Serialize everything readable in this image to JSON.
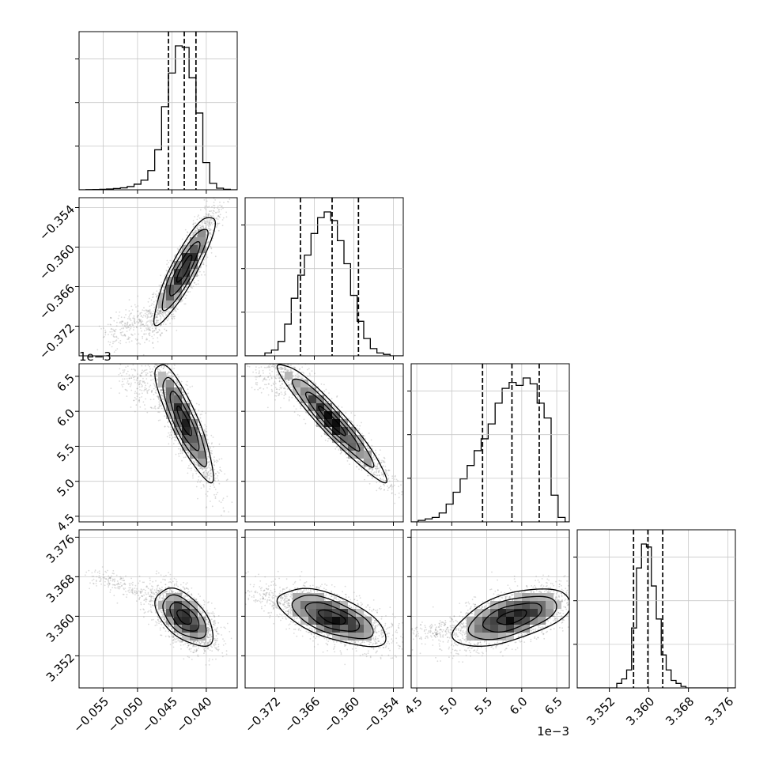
{
  "chart_data": {
    "type": "corner",
    "n_params": 4,
    "colors": {
      "hist": "#000000",
      "grid": "#c8c8c8",
      "points": "#7f7f7f",
      "contour": "#000000",
      "density": "#000000"
    },
    "grid": true,
    "axis_ranges": [
      [
        -0.0585,
        -0.0355
      ],
      [
        -0.3765,
        -0.3525
      ],
      [
        0.00442,
        0.00668
      ],
      [
        3.3455,
        3.3775
      ]
    ],
    "tick_values": [
      [
        -0.055,
        -0.05,
        -0.045,
        -0.04,
        -0.035
      ],
      [
        -0.372,
        -0.366,
        -0.36,
        -0.354
      ],
      [
        0.0045,
        0.005,
        0.0055,
        0.006,
        0.0065
      ],
      [
        3.352,
        3.36,
        3.368,
        3.376
      ]
    ],
    "tick_labels": [
      [
        "−0.055",
        "−0.050",
        "−0.045",
        "−0.040",
        "−0.035"
      ],
      [
        "−0.372",
        "−0.366",
        "−0.360",
        "−0.354"
      ],
      [
        "4.5",
        "5.0",
        "5.5",
        "6.0",
        "6.5"
      ],
      [
        "3.352",
        "3.360",
        "3.368",
        "3.376"
      ]
    ],
    "offset_text": "1e−3",
    "quantiles": [
      [
        -0.0455,
        -0.0432,
        -0.0415
      ],
      [
        -0.3681,
        -0.3633,
        -0.3593
      ],
      [
        0.00544,
        0.00586,
        0.00625
      ],
      [
        3.3569,
        3.3598,
        3.3628
      ]
    ],
    "histograms": [
      {
        "bin_edges": [
          -0.0585,
          -0.0575,
          -0.0565,
          -0.0555,
          -0.0545,
          -0.0535,
          -0.0525,
          -0.0515,
          -0.0505,
          -0.0495,
          -0.0485,
          -0.0475,
          -0.0465,
          -0.0455,
          -0.0445,
          -0.0435,
          -0.0425,
          -0.0415,
          -0.0405,
          -0.0395,
          -0.0385,
          -0.0375,
          -0.0365,
          -0.0355
        ],
        "counts": [
          0,
          1,
          2,
          3,
          5,
          8,
          12,
          20,
          35,
          60,
          120,
          250,
          520,
          730,
          900,
          890,
          700,
          480,
          170,
          40,
          10,
          3,
          0
        ]
      },
      {
        "bin_edges": [
          -0.3765,
          -0.3755,
          -0.3745,
          -0.3735,
          -0.3725,
          -0.3715,
          -0.3705,
          -0.3695,
          -0.3685,
          -0.3675,
          -0.3665,
          -0.3655,
          -0.3645,
          -0.3635,
          -0.3625,
          -0.3615,
          -0.3605,
          -0.3595,
          -0.3585,
          -0.3575,
          -0.3565,
          -0.3555,
          -0.3545,
          -0.3535,
          -0.3525
        ],
        "counts": [
          0,
          0,
          0,
          20,
          40,
          100,
          220,
          400,
          560,
          700,
          850,
          960,
          1000,
          940,
          800,
          640,
          420,
          240,
          120,
          50,
          20,
          10,
          0,
          0
        ]
      },
      {
        "bin_edges": [
          0.00442,
          0.00452,
          0.00462,
          0.00472,
          0.00482,
          0.00492,
          0.00502,
          0.00512,
          0.00522,
          0.00532,
          0.00542,
          0.00552,
          0.00562,
          0.00572,
          0.00582,
          0.00592,
          0.00602,
          0.00612,
          0.00622,
          0.00632,
          0.00642,
          0.00652,
          0.00662,
          0.00668
        ],
        "counts": [
          0,
          10,
          20,
          30,
          60,
          120,
          200,
          290,
          380,
          480,
          560,
          660,
          800,
          900,
          940,
          920,
          970,
          930,
          800,
          700,
          180,
          30,
          0
        ]
      },
      {
        "bin_edges": [
          3.3455,
          3.3465,
          3.3475,
          3.3485,
          3.3495,
          3.3505,
          3.3515,
          3.3525,
          3.3535,
          3.3545,
          3.3555,
          3.3565,
          3.3575,
          3.3585,
          3.3595,
          3.3605,
          3.3615,
          3.3625,
          3.3635,
          3.3645,
          3.3655,
          3.3665,
          3.3675,
          3.3685,
          3.3695,
          3.3705,
          3.3715,
          3.3725,
          3.3735,
          3.3745,
          3.3755,
          3.3765,
          3.3775
        ],
        "counts": [
          0,
          0,
          0,
          0,
          0,
          0,
          0,
          0,
          30,
          60,
          120,
          400,
          800,
          960,
          940,
          680,
          460,
          220,
          120,
          50,
          30,
          10,
          0,
          0,
          0,
          0,
          0,
          0,
          0,
          0,
          0,
          0
        ]
      }
    ],
    "pairs": [
      {
        "row": 1,
        "col": 0,
        "mean": [
          -0.0432,
          -0.3633
        ],
        "sd": [
          0.0022,
          0.0041
        ],
        "corr": 0.88,
        "tail": {
          "from": [
            -0.0475,
            -0.3705
          ],
          "to": [
            -0.0545,
            -0.3735
          ],
          "n": 250
        }
      },
      {
        "row": 2,
        "col": 0,
        "mean": [
          -0.0432,
          0.00586
        ],
        "sd": [
          0.0021,
          0.00042
        ],
        "corr": -0.86,
        "tail": {
          "from": [
            -0.0465,
            0.00625
          ],
          "to": [
            -0.0525,
            0.00648
          ],
          "n": 180
        }
      },
      {
        "row": 2,
        "col": 1,
        "mean": [
          -0.3633,
          0.00586
        ],
        "sd": [
          0.0041,
          0.00042
        ],
        "corr": -0.95,
        "tail": {
          "from": [
            -0.3705,
            0.0064
          ],
          "to": [
            -0.3745,
            0.0065
          ],
          "n": 150
        }
      },
      {
        "row": 3,
        "col": 0,
        "mean": [
          -0.0432,
          3.3598
        ],
        "sd": [
          0.0021,
          0.0029
        ],
        "corr": -0.55,
        "tail": {
          "from": [
            -0.0475,
            3.3635
          ],
          "to": [
            -0.0565,
            3.3685
          ],
          "n": 200
        }
      },
      {
        "row": 3,
        "col": 1,
        "mean": [
          -0.3633,
          3.3598
        ],
        "sd": [
          0.0041,
          0.0029
        ],
        "corr": -0.62,
        "tail": {
          "from": [
            -0.3705,
            3.3625
          ],
          "to": [
            -0.3755,
            3.3655
          ],
          "n": 120
        }
      },
      {
        "row": 3,
        "col": 2,
        "mean": [
          0.00586,
          3.3598
        ],
        "sd": [
          0.00042,
          0.0029
        ],
        "corr": 0.55,
        "tail": {
          "from": [
            0.005,
            3.3575
          ],
          "to": [
            0.0045,
            3.3565
          ],
          "n": 150
        }
      }
    ]
  }
}
